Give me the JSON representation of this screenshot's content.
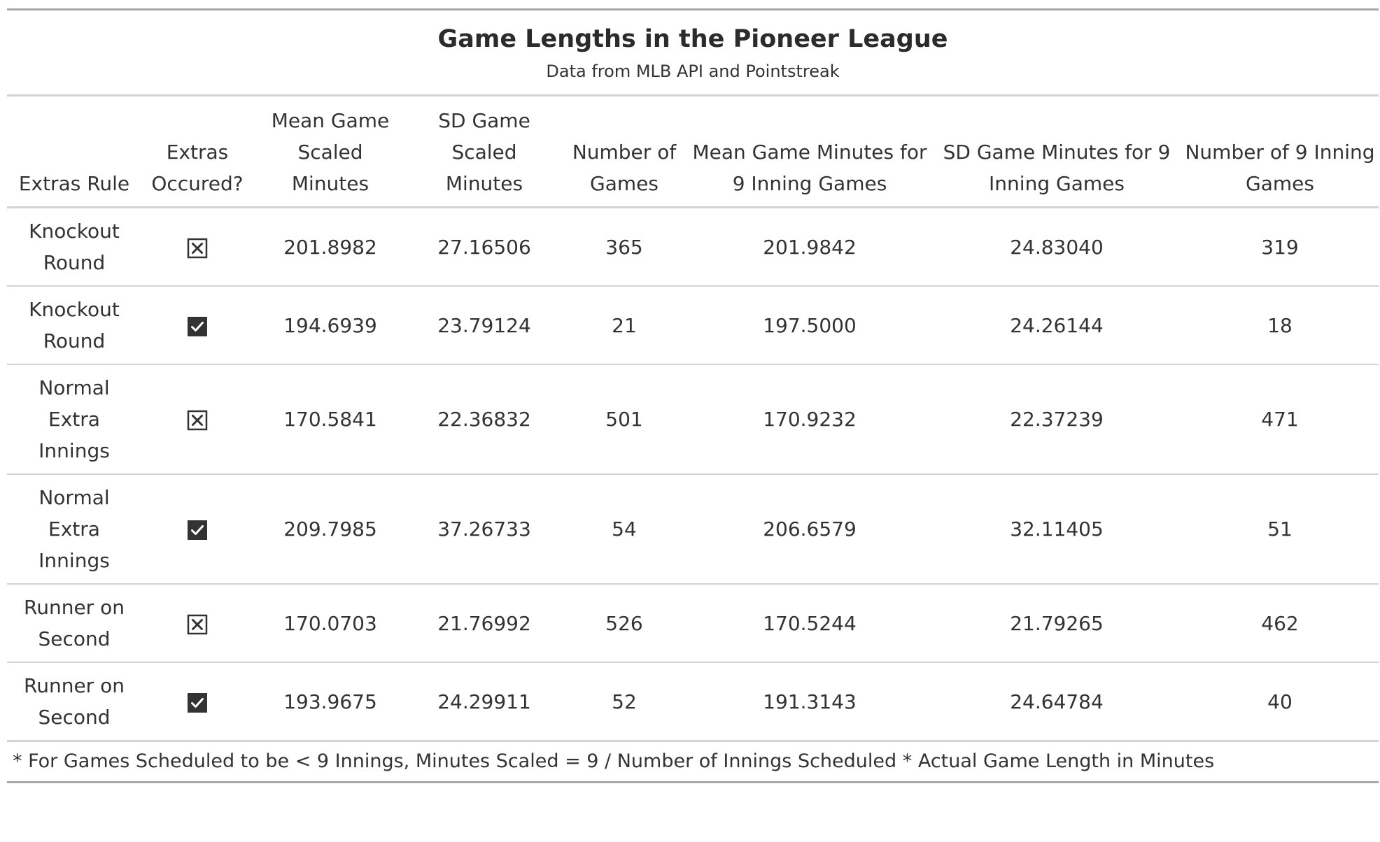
{
  "table": {
    "title": "Game Lengths in the Pioneer League",
    "subtitle": "Data from MLB API and Pointstreak",
    "columns": [
      "Extras Rule",
      "Extras Occured?",
      "Mean Game Scaled Minutes",
      "SD Game Scaled Minutes",
      "Number of Games",
      "Mean Game Minutes for 9 Inning Games",
      "SD Game Minutes for 9 Inning Games",
      "Number of 9 Inning Games"
    ],
    "rows": [
      {
        "rule": "Knockout Round",
        "extras": false,
        "extras_icon": "unchecked-x-icon",
        "mean_scaled": "201.8982",
        "sd_scaled": "27.16506",
        "n_games": "365",
        "mean_9": "201.9842",
        "sd_9": "24.83040",
        "n_9": "319"
      },
      {
        "rule": "Knockout Round",
        "extras": true,
        "extras_icon": "checked-icon",
        "mean_scaled": "194.6939",
        "sd_scaled": "23.79124",
        "n_games": "21",
        "mean_9": "197.5000",
        "sd_9": "24.26144",
        "n_9": "18"
      },
      {
        "rule": "Normal Extra Innings",
        "extras": false,
        "extras_icon": "unchecked-x-icon",
        "mean_scaled": "170.5841",
        "sd_scaled": "22.36832",
        "n_games": "501",
        "mean_9": "170.9232",
        "sd_9": "22.37239",
        "n_9": "471"
      },
      {
        "rule": "Normal Extra Innings",
        "extras": true,
        "extras_icon": "checked-icon",
        "mean_scaled": "209.7985",
        "sd_scaled": "37.26733",
        "n_games": "54",
        "mean_9": "206.6579",
        "sd_9": "32.11405",
        "n_9": "51"
      },
      {
        "rule": "Runner on Second",
        "extras": false,
        "extras_icon": "unchecked-x-icon",
        "mean_scaled": "170.0703",
        "sd_scaled": "21.76992",
        "n_games": "526",
        "mean_9": "170.5244",
        "sd_9": "21.79265",
        "n_9": "462"
      },
      {
        "rule": "Runner on Second",
        "extras": true,
        "extras_icon": "checked-icon",
        "mean_scaled": "193.9675",
        "sd_scaled": "24.29911",
        "n_games": "52",
        "mean_9": "191.3143",
        "sd_9": "24.64784",
        "n_9": "40"
      }
    ],
    "footnote": "* For Games Scheduled to be < 9 Innings, Minutes Scaled = 9 / Number of Innings Scheduled * Actual Game Length in Minutes"
  },
  "colors": {
    "text": "#333333",
    "title": "#2b2b2b",
    "rule_dark": "#a8a8a8",
    "rule_light": "#d3d3d3",
    "checkbox_fill": "#333333"
  }
}
